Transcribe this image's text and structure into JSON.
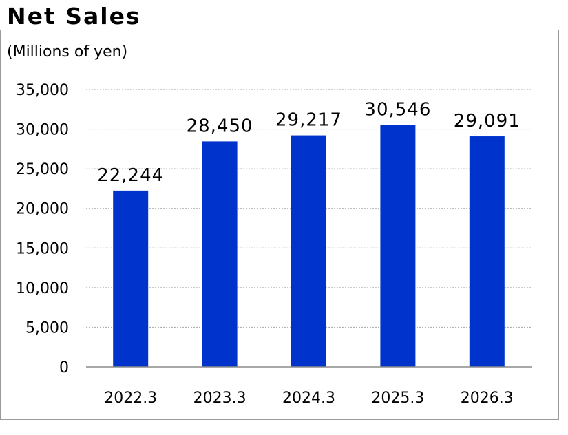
{
  "chart_data": {
    "type": "bar",
    "title": "Net Sales",
    "unit_label": "(Millions of yen)",
    "categories": [
      "2022.3",
      "2023.3",
      "2024.3",
      "2025.3",
      "2026.3"
    ],
    "values": [
      22244,
      28450,
      29217,
      30546,
      29091
    ],
    "value_labels": [
      "22,244",
      "28,450",
      "29,217",
      "30,546",
      "29,091"
    ],
    "ylim": [
      0,
      35000
    ],
    "yticks": [
      0,
      5000,
      10000,
      15000,
      20000,
      25000,
      30000,
      35000
    ],
    "ytick_labels": [
      "0",
      "5,000",
      "10,000",
      "15,000",
      "20,000",
      "25,000",
      "30,000",
      "35,000"
    ],
    "grid": true,
    "legend": "none",
    "bar_color": "#0033cc",
    "grid_color": "#a6a6a6"
  }
}
